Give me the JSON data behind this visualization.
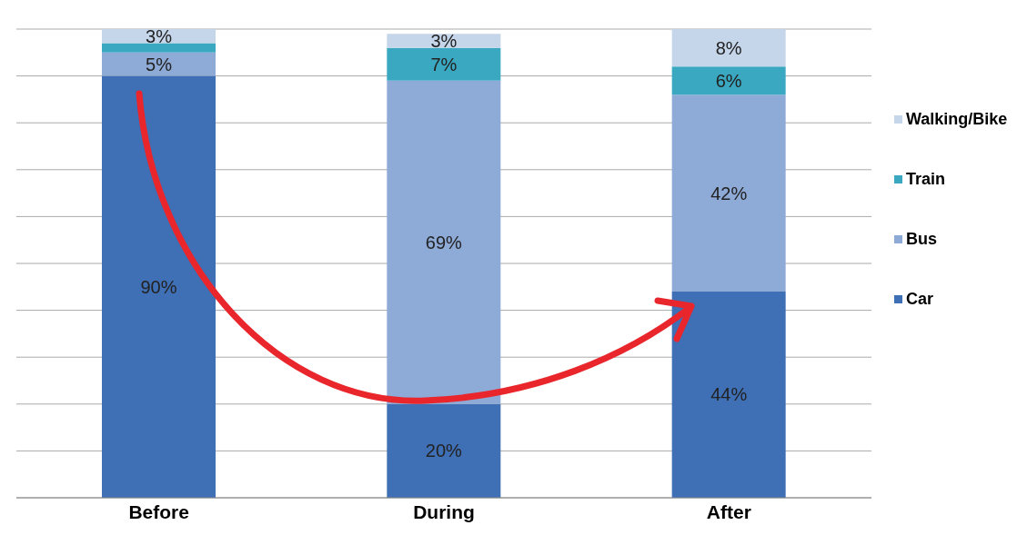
{
  "chart_data": {
    "type": "bar",
    "stacked": true,
    "categories": [
      "Before",
      "During",
      "After"
    ],
    "series": [
      {
        "name": "Car",
        "color": "#3f6fb5",
        "values": [
          90,
          20,
          44
        ],
        "value_labels": [
          "90%",
          "20%",
          "44%"
        ]
      },
      {
        "name": "Bus",
        "color": "#8eaad6",
        "values": [
          5,
          69,
          42
        ],
        "value_labels": [
          "5%",
          "69%",
          "42%"
        ]
      },
      {
        "name": "Train",
        "color": "#3aa8c1",
        "values": [
          2,
          7,
          6
        ],
        "value_labels": [
          null,
          "7%",
          "6%"
        ]
      },
      {
        "name": "Walking/Bike",
        "color": "#c5d5ea",
        "values": [
          3,
          3,
          8
        ],
        "value_labels": [
          "3%",
          "3%",
          "8%"
        ]
      }
    ],
    "ylim": [
      0,
      100
    ],
    "grid": "y",
    "tick_labels": "x",
    "legend": "right"
  }
}
